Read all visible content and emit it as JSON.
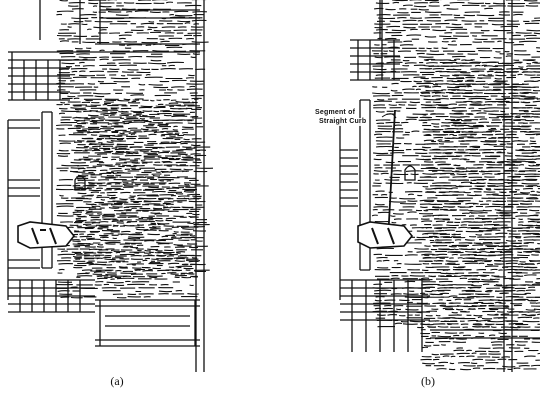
{
  "figure": {
    "panel_a_label": "(a)",
    "panel_b_label": "(b)",
    "annotation": {
      "line1": "Segment of",
      "line2": "Straight Curb"
    }
  },
  "colors": {
    "ink": "#111111",
    "paper": "#ffffff"
  }
}
